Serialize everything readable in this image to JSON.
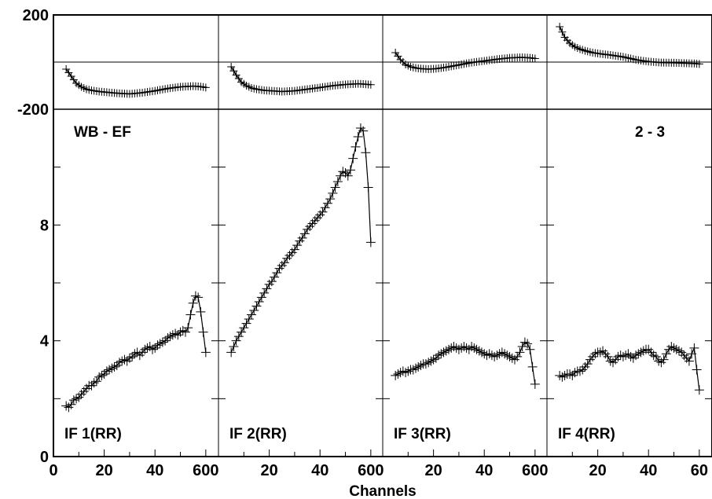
{
  "chart_data": {
    "type": "line",
    "xlabel": "Channels",
    "top_ytick_labels": [
      "200",
      "-200"
    ],
    "bottom_ytick_labels": [
      "0",
      "4",
      "8"
    ],
    "xtick_labels": [
      [
        "0",
        "20",
        "40",
        "600"
      ],
      [
        "20",
        "40",
        "600"
      ],
      [
        "20",
        "40",
        "600"
      ],
      [
        "20",
        "40",
        "60"
      ]
    ],
    "annotations": {
      "baseline": "WB - EF",
      "antennas": "2 - 3"
    },
    "top_ylim": [
      -200,
      200
    ],
    "bottom_ylim": [
      0,
      12
    ],
    "xlim": [
      0,
      65
    ],
    "panels": [
      {
        "label": "IF 1(RR)",
        "phase": {
          "x": [
            5,
            7,
            9,
            11,
            13,
            15,
            18,
            21,
            25,
            30,
            35,
            40,
            45,
            50,
            55,
            58,
            60
          ],
          "y": [
            -30,
            -60,
            -90,
            -105,
            -115,
            -120,
            -125,
            -128,
            -132,
            -135,
            -130,
            -122,
            -112,
            -105,
            -102,
            -104,
            -108
          ]
        },
        "amp": {
          "x": [
            5,
            6,
            7,
            8,
            9,
            10,
            11,
            12,
            13,
            14,
            15,
            16,
            17,
            18,
            19,
            20,
            21,
            22,
            23,
            24,
            25,
            26,
            27,
            28,
            29,
            30,
            31,
            32,
            33,
            34,
            35,
            36,
            37,
            38,
            39,
            40,
            41,
            42,
            43,
            44,
            45,
            46,
            47,
            48,
            49,
            50,
            51,
            52,
            53,
            54,
            55,
            56,
            57,
            58,
            59,
            60
          ],
          "y": [
            1.75,
            1.7,
            1.8,
            1.95,
            2.0,
            2.05,
            2.15,
            2.25,
            2.35,
            2.45,
            2.45,
            2.55,
            2.6,
            2.75,
            2.8,
            2.85,
            2.95,
            3.0,
            3.05,
            3.1,
            3.15,
            3.25,
            3.3,
            3.35,
            3.3,
            3.4,
            3.45,
            3.55,
            3.6,
            3.5,
            3.6,
            3.7,
            3.75,
            3.8,
            3.7,
            3.75,
            3.85,
            3.9,
            3.95,
            4.0,
            4.1,
            4.15,
            4.2,
            4.25,
            4.2,
            4.3,
            4.35,
            4.3,
            4.45,
            4.9,
            5.3,
            5.55,
            5.5,
            5.0,
            4.3,
            3.6
          ]
        }
      },
      {
        "label": "IF 2(RR)",
        "phase": {
          "x": [
            5,
            7,
            9,
            11,
            13,
            15,
            18,
            21,
            25,
            30,
            35,
            40,
            45,
            50,
            55,
            58,
            60
          ],
          "y": [
            -20,
            -55,
            -85,
            -100,
            -110,
            -115,
            -120,
            -122,
            -125,
            -122,
            -115,
            -108,
            -100,
            -95,
            -92,
            -94,
            -96
          ]
        },
        "amp": {
          "x": [
            5,
            6,
            7,
            8,
            9,
            10,
            11,
            12,
            13,
            14,
            15,
            16,
            17,
            18,
            19,
            20,
            21,
            22,
            23,
            24,
            25,
            26,
            27,
            28,
            29,
            30,
            31,
            32,
            33,
            34,
            35,
            36,
            37,
            38,
            39,
            40,
            41,
            42,
            43,
            44,
            45,
            46,
            47,
            48,
            49,
            50,
            51,
            52,
            53,
            54,
            55,
            56,
            57,
            58,
            59,
            60
          ],
          "y": [
            3.6,
            3.8,
            4.0,
            4.15,
            4.3,
            4.45,
            4.6,
            4.75,
            4.9,
            5.05,
            5.2,
            5.35,
            5.5,
            5.65,
            5.8,
            5.95,
            6.05,
            6.2,
            6.35,
            6.5,
            6.6,
            6.7,
            6.85,
            6.95,
            7.05,
            7.15,
            7.3,
            7.45,
            7.55,
            7.7,
            7.85,
            7.95,
            8.05,
            8.15,
            8.25,
            8.35,
            8.45,
            8.6,
            8.75,
            8.9,
            9.1,
            9.3,
            9.5,
            9.7,
            9.85,
            9.8,
            9.7,
            9.9,
            10.3,
            10.7,
            11.05,
            11.35,
            11.25,
            10.5,
            9.3,
            7.4
          ]
        }
      },
      {
        "label": "IF 3(RR)",
        "phase": {
          "x": [
            5,
            7,
            9,
            11,
            13,
            15,
            18,
            21,
            25,
            30,
            35,
            40,
            45,
            50,
            55,
            58,
            60
          ],
          "y": [
            40,
            10,
            -10,
            -20,
            -25,
            -28,
            -30,
            -28,
            -22,
            -12,
            -2,
            5,
            12,
            18,
            20,
            18,
            15
          ]
        },
        "amp": {
          "x": [
            5,
            6,
            7,
            8,
            9,
            10,
            11,
            12,
            13,
            14,
            15,
            16,
            17,
            18,
            19,
            20,
            21,
            22,
            23,
            24,
            25,
            26,
            27,
            28,
            29,
            30,
            31,
            32,
            33,
            34,
            35,
            36,
            37,
            38,
            39,
            40,
            41,
            42,
            43,
            44,
            45,
            46,
            47,
            48,
            49,
            50,
            51,
            52,
            53,
            54,
            55,
            56,
            57,
            58,
            59,
            60
          ],
          "y": [
            2.8,
            2.85,
            2.9,
            2.95,
            2.9,
            2.95,
            3.0,
            3.0,
            3.05,
            3.1,
            3.15,
            3.2,
            3.2,
            3.25,
            3.3,
            3.35,
            3.4,
            3.5,
            3.55,
            3.6,
            3.65,
            3.7,
            3.75,
            3.8,
            3.75,
            3.7,
            3.75,
            3.8,
            3.75,
            3.7,
            3.8,
            3.75,
            3.7,
            3.65,
            3.6,
            3.55,
            3.5,
            3.55,
            3.5,
            3.45,
            3.5,
            3.55,
            3.6,
            3.55,
            3.5,
            3.45,
            3.4,
            3.35,
            3.45,
            3.6,
            3.8,
            3.95,
            3.9,
            3.7,
            3.1,
            2.5
          ]
        }
      },
      {
        "label": "IF 4(RR)",
        "phase": {
          "x": [
            5,
            7,
            9,
            11,
            13,
            15,
            18,
            21,
            25,
            30,
            35,
            40,
            45,
            50,
            55,
            58,
            60
          ],
          "y": [
            150,
            105,
            80,
            65,
            55,
            48,
            40,
            35,
            30,
            22,
            10,
            2,
            -2,
            -3,
            -5,
            -6,
            -8
          ]
        },
        "amp": {
          "x": [
            5,
            6,
            7,
            8,
            9,
            10,
            11,
            12,
            13,
            14,
            15,
            16,
            17,
            18,
            19,
            20,
            21,
            22,
            23,
            24,
            25,
            26,
            27,
            28,
            29,
            30,
            31,
            32,
            33,
            34,
            35,
            36,
            37,
            38,
            39,
            40,
            41,
            42,
            43,
            44,
            45,
            46,
            47,
            48,
            49,
            50,
            51,
            52,
            53,
            54,
            55,
            56,
            57,
            58,
            59,
            60
          ],
          "y": [
            2.8,
            2.75,
            2.8,
            2.85,
            2.85,
            2.8,
            2.9,
            2.95,
            2.95,
            3.0,
            3.1,
            3.2,
            3.35,
            3.45,
            3.55,
            3.6,
            3.6,
            3.65,
            3.55,
            3.45,
            3.3,
            3.25,
            3.35,
            3.45,
            3.5,
            3.45,
            3.5,
            3.55,
            3.45,
            3.4,
            3.5,
            3.55,
            3.6,
            3.65,
            3.7,
            3.7,
            3.6,
            3.5,
            3.45,
            3.3,
            3.25,
            3.35,
            3.55,
            3.7,
            3.8,
            3.75,
            3.7,
            3.65,
            3.6,
            3.5,
            3.4,
            3.3,
            3.55,
            3.75,
            3.0,
            2.3
          ]
        }
      }
    ]
  }
}
